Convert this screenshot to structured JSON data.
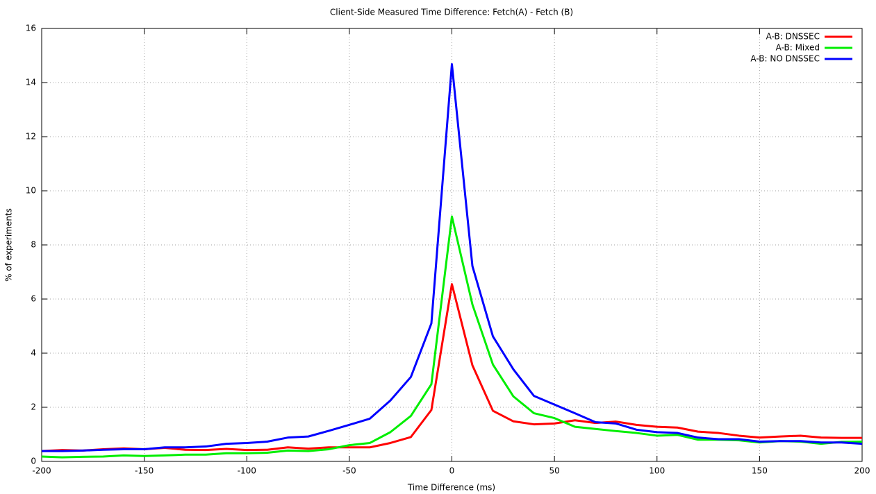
{
  "chart_data": {
    "type": "line",
    "title": "Client-Side Measured Time Difference: Fetch(A) - Fetch (B)",
    "x_label": "Time Difference (ms)",
    "y_label": "% of experiments",
    "x": [
      -200,
      -190,
      -180,
      -170,
      -160,
      -150,
      -140,
      -130,
      -120,
      -110,
      -100,
      -90,
      -80,
      -70,
      -60,
      -50,
      -40,
      -30,
      -20,
      -10,
      0,
      10,
      20,
      30,
      40,
      50,
      60,
      70,
      80,
      90,
      100,
      110,
      120,
      130,
      140,
      150,
      160,
      170,
      180,
      190,
      200
    ],
    "series": [
      {
        "name": "A-B: DNSSEC",
        "color": "#ff0000",
        "values": [
          0.38,
          0.42,
          0.4,
          0.45,
          0.48,
          0.45,
          0.5,
          0.43,
          0.42,
          0.46,
          0.42,
          0.43,
          0.52,
          0.47,
          0.52,
          0.52,
          0.52,
          0.68,
          0.9,
          1.9,
          6.55,
          3.55,
          1.87,
          1.48,
          1.37,
          1.4,
          1.52,
          1.42,
          1.47,
          1.35,
          1.28,
          1.25,
          1.1,
          1.05,
          0.95,
          0.88,
          0.92,
          0.95,
          0.88,
          0.87,
          0.87
        ]
      },
      {
        "name": "A-B: Mixed",
        "color": "#00ee00",
        "values": [
          0.18,
          0.15,
          0.17,
          0.18,
          0.22,
          0.2,
          0.22,
          0.25,
          0.25,
          0.3,
          0.3,
          0.32,
          0.4,
          0.38,
          0.45,
          0.6,
          0.68,
          1.08,
          1.68,
          2.85,
          9.05,
          5.8,
          3.58,
          2.4,
          1.78,
          1.6,
          1.28,
          1.2,
          1.12,
          1.05,
          0.95,
          0.98,
          0.8,
          0.8,
          0.78,
          0.7,
          0.75,
          0.73,
          0.65,
          0.72,
          0.73
        ]
      },
      {
        "name": "A-B: NO DNSSEC",
        "color": "#0000ff",
        "values": [
          0.38,
          0.38,
          0.4,
          0.43,
          0.45,
          0.45,
          0.52,
          0.52,
          0.55,
          0.65,
          0.68,
          0.73,
          0.88,
          0.92,
          1.13,
          1.35,
          1.58,
          2.25,
          3.12,
          5.1,
          14.68,
          7.22,
          4.62,
          3.4,
          2.42,
          2.1,
          1.78,
          1.45,
          1.4,
          1.17,
          1.08,
          1.05,
          0.88,
          0.82,
          0.82,
          0.73,
          0.75,
          0.75,
          0.7,
          0.7,
          0.65
        ]
      }
    ],
    "xlim": [
      -200,
      200
    ],
    "xticks": [
      -200,
      -150,
      -100,
      -50,
      0,
      50,
      100,
      150,
      200
    ],
    "ylim": [
      0,
      16
    ],
    "yticks": [
      0,
      2,
      4,
      6,
      8,
      10,
      12,
      14,
      16
    ],
    "grid": true,
    "legend": "top-right"
  }
}
